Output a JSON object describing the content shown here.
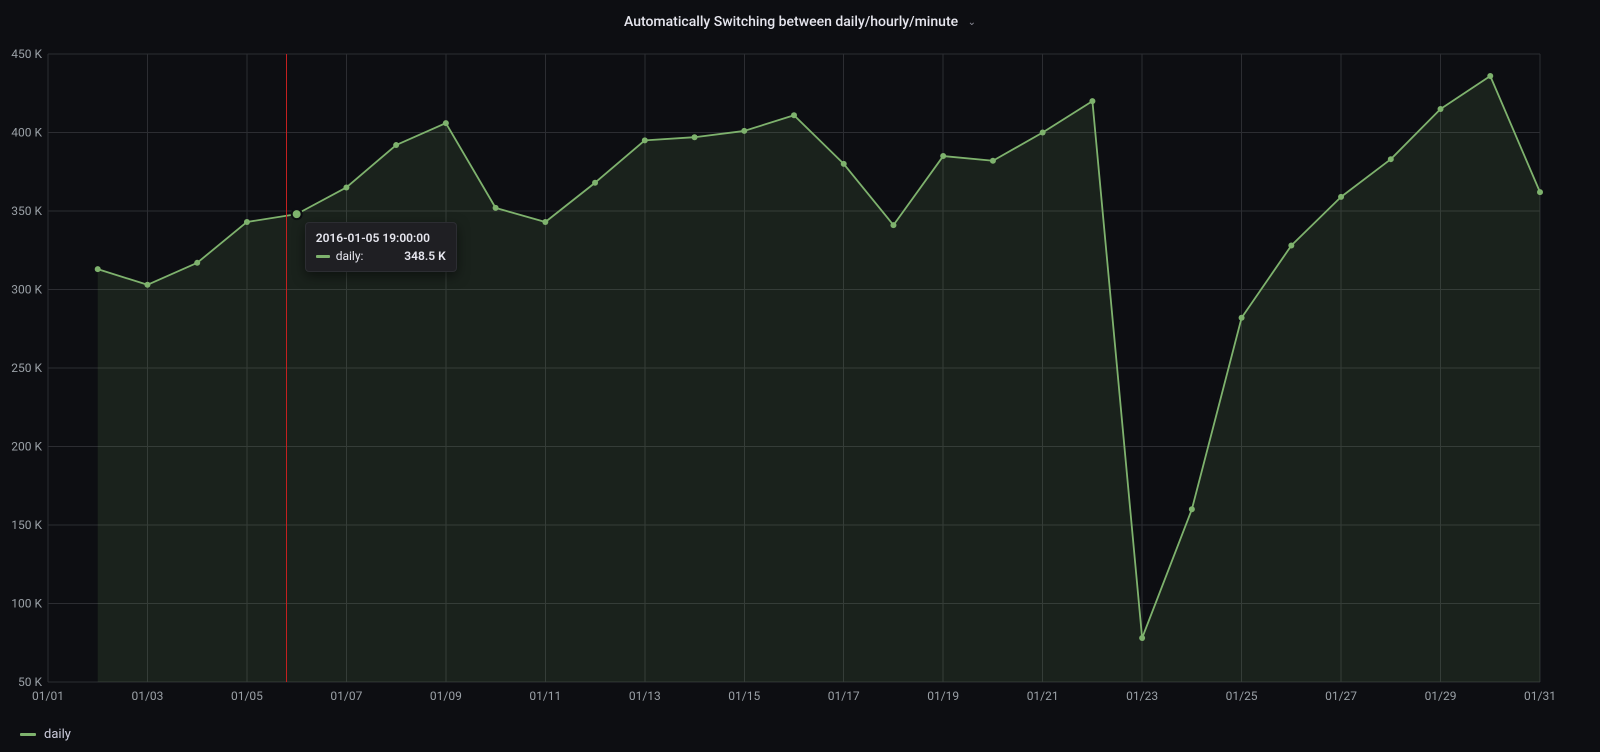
{
  "panel": {
    "title": "Automatically Switching between daily/hourly/minute",
    "background": "#0d0e12",
    "grid_color": "#2c2d32",
    "text_color": "#ccccdc",
    "axis_text_color": "#9aa0a6"
  },
  "chart": {
    "type": "area-line",
    "series_name": "daily",
    "series_color": "#7eb26d",
    "point_radius": 3,
    "line_width": 1.8,
    "area_opacity": 0.12,
    "ylim": [
      50,
      450
    ],
    "ytick_step": 50,
    "y_suffix": " K",
    "x_ticks": [
      "01/01",
      "01/03",
      "01/05",
      "01/07",
      "01/09",
      "01/11",
      "01/13",
      "01/15",
      "01/17",
      "01/19",
      "01/21",
      "01/23",
      "01/25",
      "01/27",
      "01/29",
      "01/31"
    ],
    "data": [
      {
        "x": "01/02",
        "y": 313
      },
      {
        "x": "01/03",
        "y": 303
      },
      {
        "x": "01/04",
        "y": 317
      },
      {
        "x": "01/05",
        "y": 343
      },
      {
        "x": "01/06",
        "y": 348
      },
      {
        "x": "01/07",
        "y": 365
      },
      {
        "x": "01/08",
        "y": 392
      },
      {
        "x": "01/09",
        "y": 406
      },
      {
        "x": "01/10",
        "y": 352
      },
      {
        "x": "01/11",
        "y": 343
      },
      {
        "x": "01/12",
        "y": 368
      },
      {
        "x": "01/13",
        "y": 395
      },
      {
        "x": "01/14",
        "y": 397
      },
      {
        "x": "01/15",
        "y": 401
      },
      {
        "x": "01/16",
        "y": 411
      },
      {
        "x": "01/17",
        "y": 380
      },
      {
        "x": "01/18",
        "y": 341
      },
      {
        "x": "01/19",
        "y": 385
      },
      {
        "x": "01/20",
        "y": 382
      },
      {
        "x": "01/21",
        "y": 400
      },
      {
        "x": "01/22",
        "y": 420
      },
      {
        "x": "01/23",
        "y": 78
      },
      {
        "x": "01/24",
        "y": 160
      },
      {
        "x": "01/25",
        "y": 282
      },
      {
        "x": "01/26",
        "y": 328
      },
      {
        "x": "01/27",
        "y": 359
      },
      {
        "x": "01/28",
        "y": 383
      },
      {
        "x": "01/29",
        "y": 415
      },
      {
        "x": "01/30",
        "y": 436
      },
      {
        "x": "01/31",
        "y": 362
      }
    ],
    "x_domain_start": "01/01",
    "x_domain_end": "01/31"
  },
  "hover": {
    "crosshair_color": "#c42020",
    "at_x": "01/05.8",
    "timestamp": "2016-01-05 19:00:00",
    "series_label": "daily:",
    "value_label": "348.5 K",
    "point_index": 4
  },
  "legend": {
    "label": "daily"
  }
}
